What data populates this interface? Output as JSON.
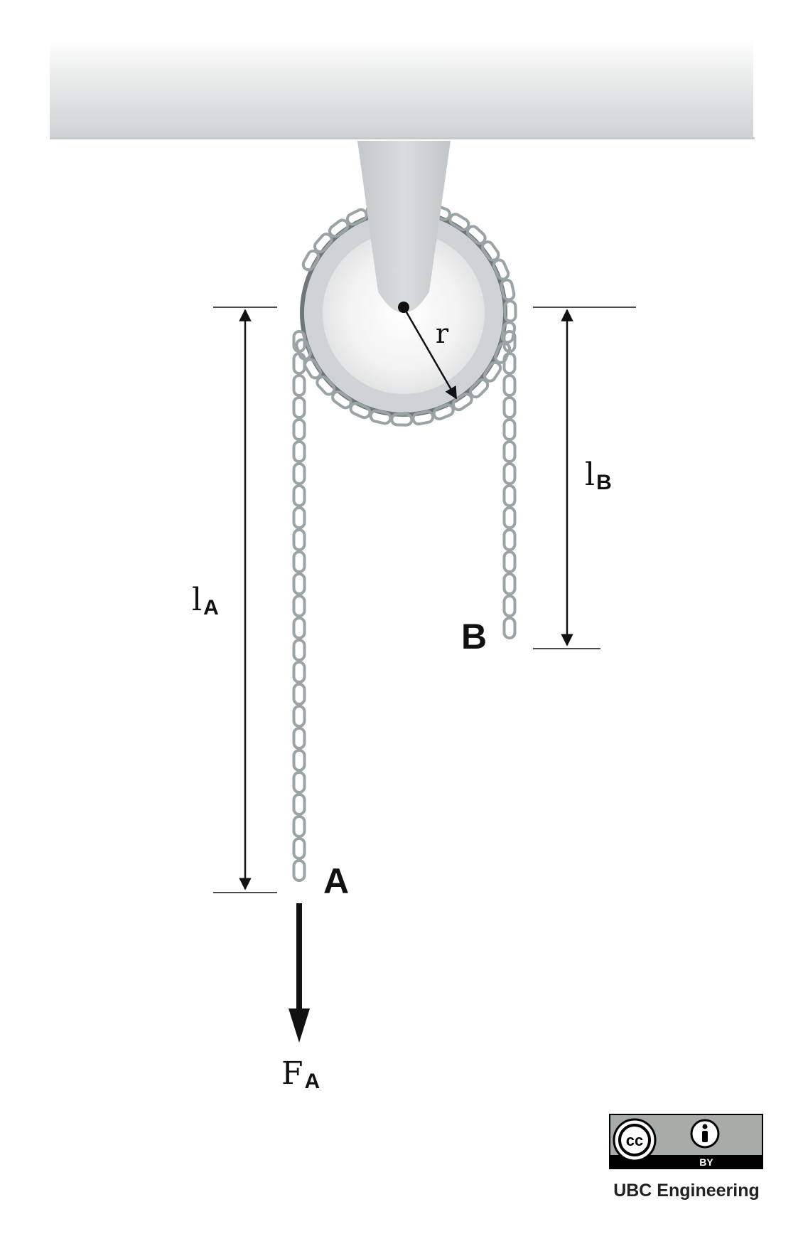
{
  "labels": {
    "radius": "r",
    "length_a": {
      "symbol": "l",
      "subscript": "A"
    },
    "length_b": {
      "symbol": "l",
      "subscript": "B"
    },
    "point_a": "A",
    "point_b": "B",
    "force_a": {
      "symbol": "F",
      "subscript": "A"
    }
  },
  "license": {
    "badge_cc": "cc",
    "badge_by": "BY",
    "credit": "UBC Engineering"
  },
  "icons": [
    "cc-icon",
    "attribution-person-icon",
    "arrow-down-icon"
  ],
  "colors": {
    "chain": "#9aa3a5",
    "pulley_rim": "#6f7779",
    "pulley_face": "#cfd3d5",
    "beam": "#d2d4d6",
    "ink": "#111111",
    "badge_bg": "#a8aca9"
  }
}
